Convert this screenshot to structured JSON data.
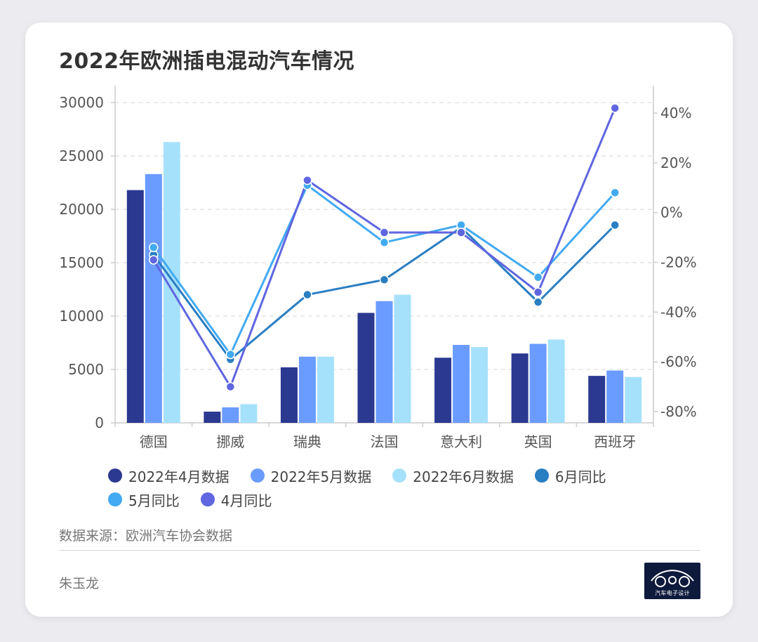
{
  "title": "2022年欧洲插电混动汽车情况",
  "source": "数据来源：欧洲汽车协会数据",
  "author": "朱玉龙",
  "logo_text": "汽车电子设计",
  "colors": {
    "apr_bar": "#2b3990",
    "may_bar": "#6a9bff",
    "jun_bar": "#a6e1fb",
    "jun_yoy": "#2a7ec2",
    "may_yoy": "#42aaf2",
    "apr_yoy": "#5f66e0",
    "grid": "#dddddd",
    "axis": "#cccccc",
    "tick_text": "#555555"
  },
  "chart_data": {
    "type": "bar",
    "title": "2022年欧洲插电混动汽车情况",
    "categories": [
      "德国",
      "挪威",
      "瑞典",
      "法国",
      "意大利",
      "英国",
      "西班牙"
    ],
    "ylim": [
      0,
      30000
    ],
    "yticks": [
      0,
      5000,
      10000,
      15000,
      20000,
      25000,
      30000
    ],
    "y2lim": [
      -85,
      50
    ],
    "y2ticks": [
      40,
      20,
      0,
      -20,
      -40,
      -60,
      -80
    ],
    "y2_tick_labels": [
      "40%",
      "20%",
      "0%",
      "-20%",
      "-40%",
      "-60%",
      "-80%"
    ],
    "grid": true,
    "legend_position": "bottom",
    "series": [
      {
        "name": "2022年4月数据",
        "type": "bar",
        "axis": "left",
        "color": "#2b3990",
        "values": [
          21800,
          1050,
          5200,
          10300,
          6100,
          6500,
          4400
        ]
      },
      {
        "name": "2022年5月数据",
        "type": "bar",
        "axis": "left",
        "color": "#6a9bff",
        "values": [
          23300,
          1450,
          6200,
          11400,
          7300,
          7400,
          4900
        ]
      },
      {
        "name": "2022年6月数据",
        "type": "bar",
        "axis": "left",
        "color": "#a6e1fb",
        "values": [
          26300,
          1750,
          6200,
          12000,
          7100,
          7800,
          4300
        ]
      },
      {
        "name": "6月同比",
        "type": "line",
        "axis": "right",
        "color": "#2a7ec2",
        "values": [
          -17,
          -59,
          -33,
          -27,
          -6,
          -36,
          -5
        ]
      },
      {
        "name": "5月同比",
        "type": "line",
        "axis": "right",
        "color": "#42aaf2",
        "values": [
          -14,
          -57,
          11,
          -12,
          -5,
          -26,
          8
        ]
      },
      {
        "name": "4月同比",
        "type": "line",
        "axis": "right",
        "color": "#5f66e0",
        "values": [
          -19,
          -70,
          13,
          -8,
          -8,
          -32,
          42
        ]
      }
    ]
  }
}
